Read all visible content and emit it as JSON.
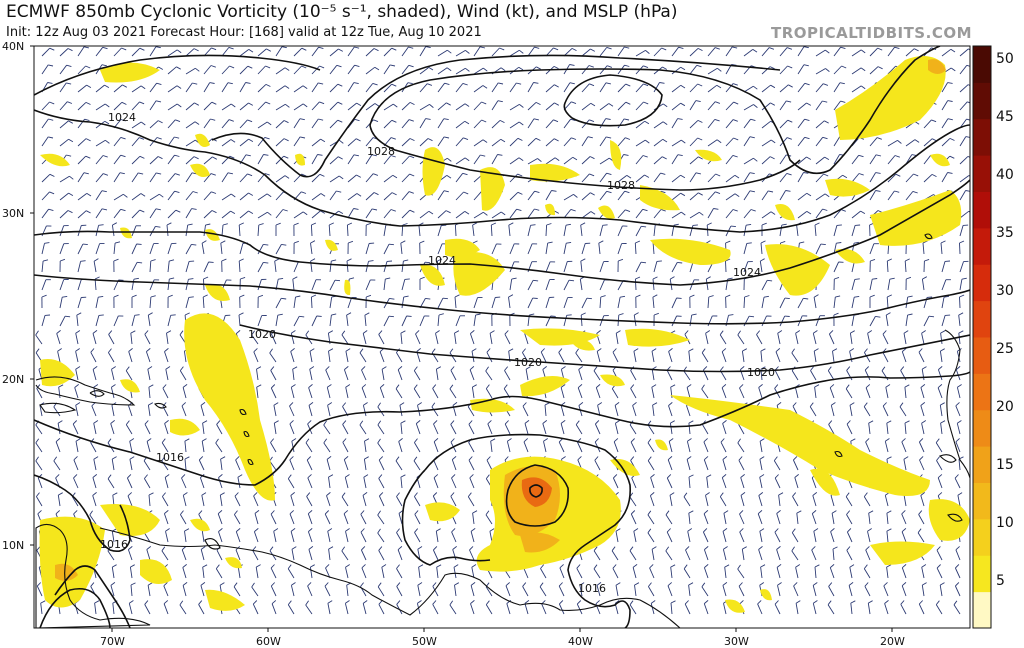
{
  "header": {
    "title": "ECMWF 850mb Cyclonic Vorticity (10⁻⁵ s⁻¹, shaded), Wind (kt), and MSLP (hPa)",
    "subtitle": "Init: 12z Aug 03 2021   Forecast Hour: [168]   valid at 12z Tue, Aug 10 2021",
    "brand": "TROPICALTIDBITS.COM"
  },
  "axes": {
    "lon_labels": [
      "70W",
      "60W",
      "50W",
      "40W",
      "30W",
      "20W"
    ],
    "lat_labels": [
      "40N",
      "30N",
      "20N",
      "10N"
    ]
  },
  "colorbar": {
    "ticks": [
      "50",
      "45",
      "40",
      "35",
      "30",
      "25",
      "20",
      "15",
      "10",
      "5"
    ],
    "colors": [
      "#fff9c4",
      "#f6e71f",
      "#f4d01d",
      "#f2b91b",
      "#f0a219",
      "#ee8b17",
      "#ec7415",
      "#e75c12",
      "#e0440f",
      "#d62c0c",
      "#c41a0a",
      "#b00e08",
      "#981006",
      "#7d0e05",
      "#600c04",
      "#4a0a03"
    ]
  },
  "isobars": {
    "labels": [
      "1024",
      "1028",
      "1028",
      "1024",
      "1024",
      "1020",
      "1020",
      "1020",
      "1016",
      "1016",
      "1016"
    ]
  },
  "colors": {
    "isobar": "#111111",
    "barb": "#2c3a73",
    "vorticity_low": "#f5e61c",
    "vorticity_mid": "#f1b21a",
    "vorticity_high": "#e96a12"
  }
}
